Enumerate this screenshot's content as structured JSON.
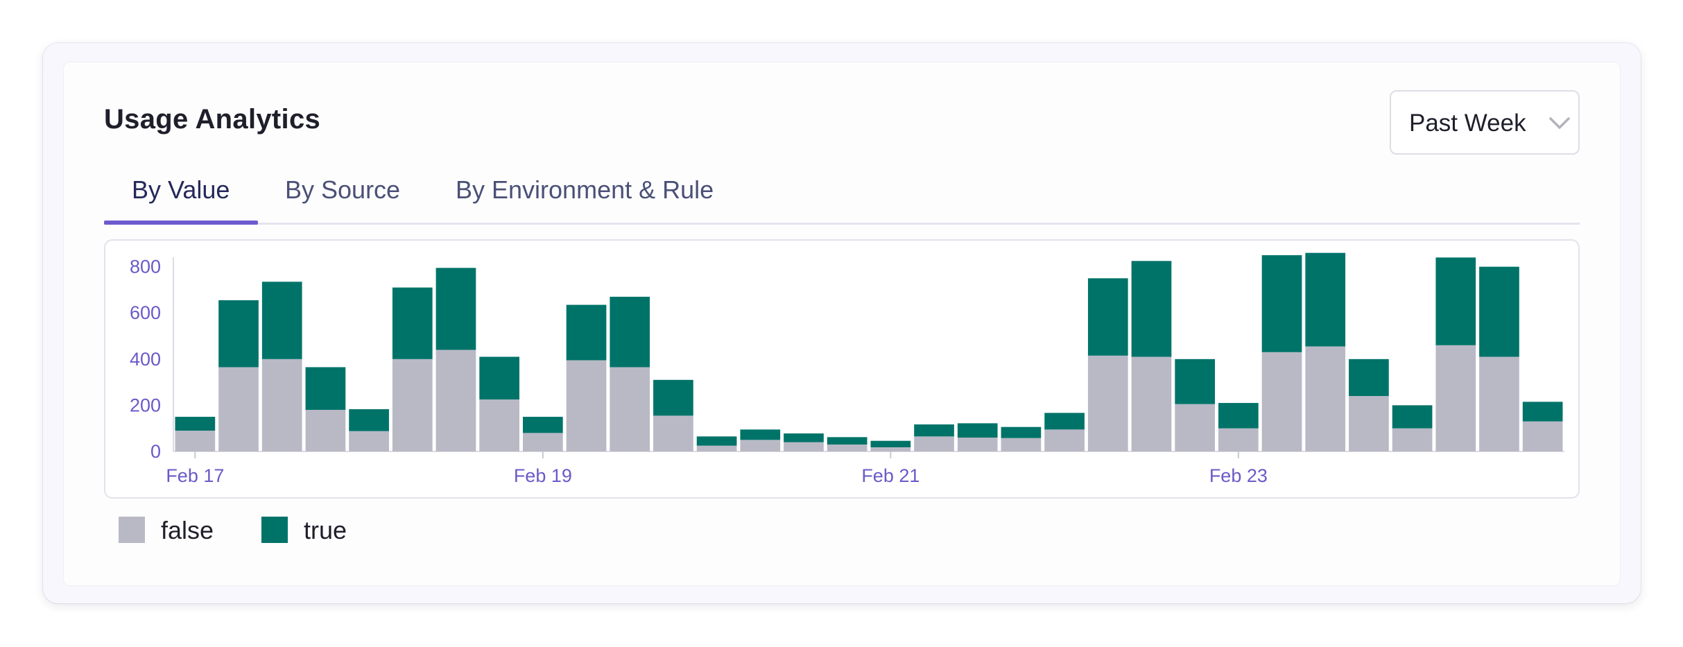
{
  "header": {
    "title": "Usage Analytics"
  },
  "range_select": {
    "selected": "Past Week"
  },
  "tabs": [
    {
      "label": "By Value",
      "active": true
    },
    {
      "label": "By Source",
      "active": false
    },
    {
      "label": "By Environment & Rule",
      "active": false
    }
  ],
  "colors": {
    "false": "#b9b9c6",
    "true": "#007369",
    "axis": "#6a5ac8",
    "accent": "#6e5ad0"
  },
  "chart_data": {
    "type": "bar",
    "stacked": true,
    "title": "",
    "xlabel": "",
    "ylabel": "",
    "ylim": [
      0,
      850
    ],
    "yticks": [
      0,
      200,
      400,
      600,
      800
    ],
    "xticks": [
      {
        "index": 0.5,
        "label": "Feb 17"
      },
      {
        "index": 8.5,
        "label": "Feb 19"
      },
      {
        "index": 16.5,
        "label": "Feb 21"
      },
      {
        "index": 24.5,
        "label": "Feb 23"
      }
    ],
    "series": [
      {
        "name": "false",
        "values": [
          90,
          365,
          400,
          180,
          88,
          400,
          440,
          225,
          80,
          395,
          365,
          155,
          25,
          50,
          40,
          30,
          18,
          65,
          60,
          58,
          95,
          415,
          410,
          205,
          100,
          430,
          455,
          240,
          100,
          460,
          410,
          130
        ]
      },
      {
        "name": "true",
        "values": [
          60,
          290,
          335,
          185,
          95,
          310,
          355,
          185,
          70,
          240,
          305,
          155,
          40,
          45,
          38,
          32,
          28,
          52,
          62,
          48,
          72,
          335,
          415,
          195,
          110,
          420,
          405,
          160,
          100,
          380,
          390,
          85
        ]
      }
    ],
    "legend": [
      "false",
      "true"
    ]
  }
}
